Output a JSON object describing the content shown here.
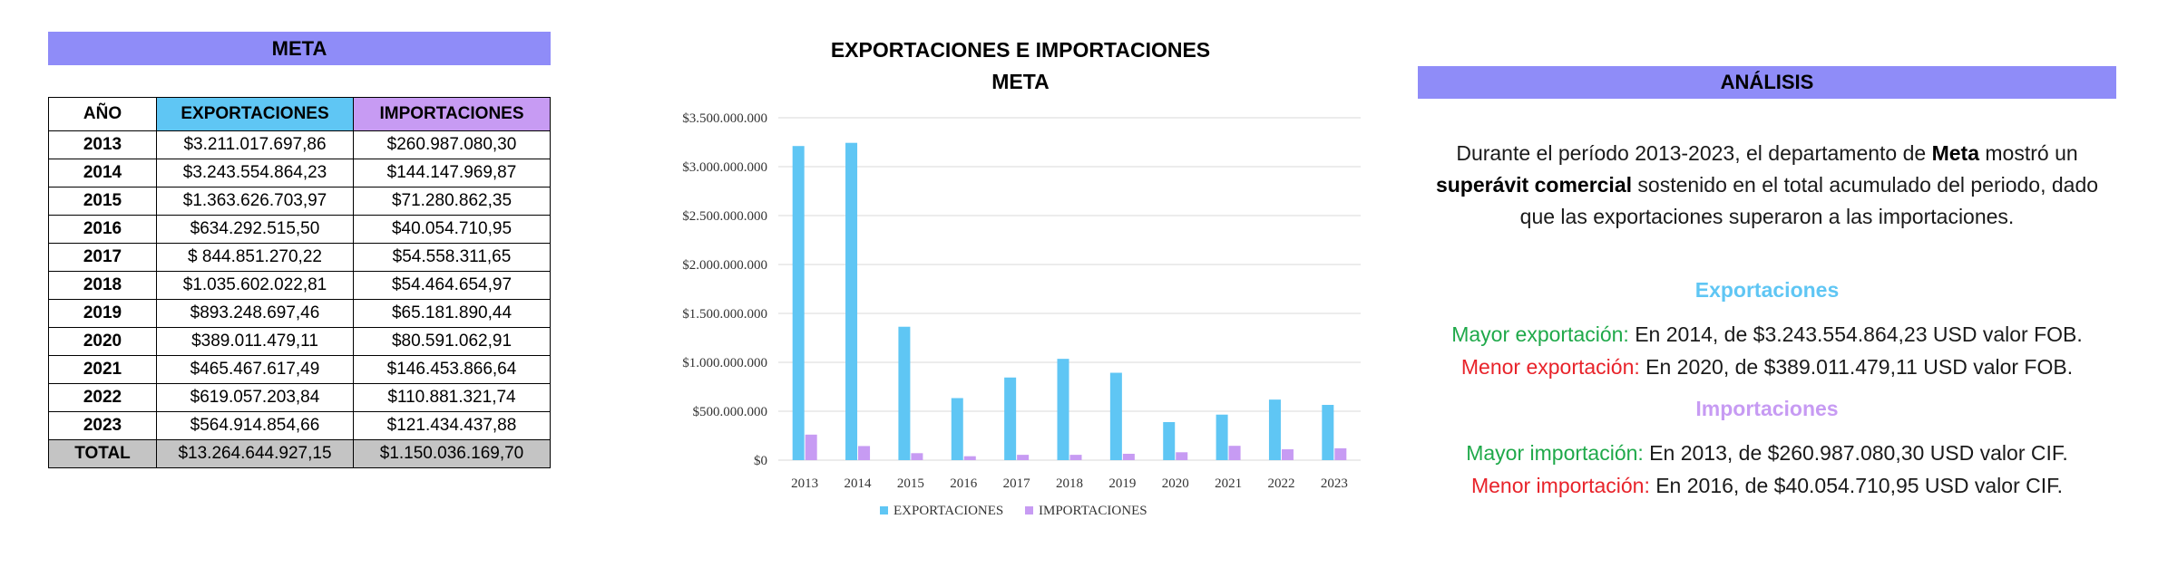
{
  "table": {
    "title": "META",
    "headers": {
      "year": "AÑO",
      "exports": "EXPORTACIONES",
      "imports": "IMPORTACIONES"
    },
    "rows": [
      {
        "year": "2013",
        "exports": "$3.211.017.697,86",
        "imports": "$260.987.080,30"
      },
      {
        "year": "2014",
        "exports": "$3.243.554.864,23",
        "imports": "$144.147.969,87"
      },
      {
        "year": "2015",
        "exports": "$1.363.626.703,97",
        "imports": "$71.280.862,35"
      },
      {
        "year": "2016",
        "exports": "$634.292.515,50",
        "imports": "$40.054.710,95"
      },
      {
        "year": "2017",
        "exports": "$ 844.851.270,22",
        "imports": "$54.558.311,65"
      },
      {
        "year": "2018",
        "exports": "$1.035.602.022,81",
        "imports": "$54.464.654,97"
      },
      {
        "year": "2019",
        "exports": "$893.248.697,46",
        "imports": "$65.181.890,44"
      },
      {
        "year": "2020",
        "exports": "$389.011.479,11",
        "imports": "$80.591.062,91"
      },
      {
        "year": "2021",
        "exports": "$465.467.617,49",
        "imports": "$146.453.866,64"
      },
      {
        "year": "2022",
        "exports": "$619.057.203,84",
        "imports": "$110.881.321,74"
      },
      {
        "year": "2023",
        "exports": "$564.914.854,66",
        "imports": "$121.434.437,88"
      }
    ],
    "total": {
      "label": "TOTAL",
      "exports": "$13.264.644.927,15",
      "imports": "$1.150.036.169,70"
    }
  },
  "chart_data": {
    "type": "bar",
    "title": "EXPORTACIONES E IMPORTACIONES",
    "subtitle": "META",
    "categories": [
      "2013",
      "2014",
      "2015",
      "2016",
      "2017",
      "2018",
      "2019",
      "2020",
      "2021",
      "2022",
      "2023"
    ],
    "series": [
      {
        "name": "EXPORTACIONES",
        "color": "#5fc6f4",
        "values": [
          3211017697.86,
          3243554864.23,
          1363626703.97,
          634292515.5,
          844851270.22,
          1035602022.81,
          893248697.46,
          389011479.11,
          465467617.49,
          619057203.84,
          564914854.66
        ]
      },
      {
        "name": "IMPORTACIONES",
        "color": "#c79bf3",
        "values": [
          260987080.3,
          144147969.87,
          71280862.35,
          40054710.95,
          54558311.65,
          54464654.97,
          65181890.44,
          80591062.91,
          146453866.64,
          110881321.74,
          121434437.88
        ]
      }
    ],
    "yticks": [
      "$0",
      "$500.000.000",
      "$1.000.000.000",
      "$1.500.000.000",
      "$2.000.000.000",
      "$2.500.000.000",
      "$3.000.000.000",
      "$3.500.000.000"
    ],
    "ylim": [
      0,
      3500000000
    ],
    "grid": true,
    "legend_position": "bottom"
  },
  "analysis": {
    "title": "ANÁLISIS",
    "intro_1": "Durante el período 2013-2023, el departamento de ",
    "intro_bold_1": "Meta",
    "intro_2": " mostró un ",
    "intro_bold_2": "superávit comercial",
    "intro_3": " sostenido en el total acumulado del periodo, dado que las exportaciones superaron a las importaciones.",
    "exports_heading": "Exportaciones",
    "exports_max_label": "Mayor exportación:",
    "exports_max_text": " En 2014, de $3.243.554.864,23 USD valor FOB.",
    "exports_min_label": "Menor exportación:",
    "exports_min_text": " En 2020, de $389.011.479,11 USD valor FOB.",
    "imports_heading": "Importaciones",
    "imports_max_label": "Mayor importación:",
    "imports_max_text": " En 2013, de $260.987.080,30 USD valor CIF.",
    "imports_min_label": "Menor importación:",
    "imports_min_text": " En 2016, de $40.054.710,95 USD valor CIF."
  }
}
